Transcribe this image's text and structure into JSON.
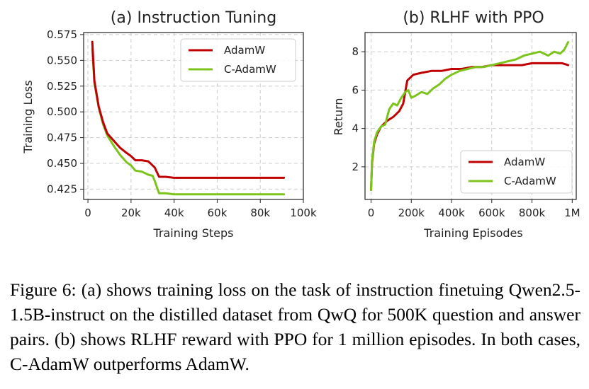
{
  "charts": [
    {
      "title": "(a) Instruction Tuning",
      "xlabel": "Training Steps",
      "ylabel": "Training Loss",
      "xticks": [
        "0",
        "20k",
        "40k",
        "60k",
        "80k",
        "100k"
      ],
      "yticks": [
        "0.425",
        "0.450",
        "0.475",
        "0.500",
        "0.525",
        "0.550",
        "0.575"
      ]
    },
    {
      "title": "(b) RLHF with PPO",
      "xlabel": "Training Episodes",
      "ylabel": "Return",
      "xticks": [
        "0",
        "200k",
        "400k",
        "600k",
        "800k",
        "1M"
      ],
      "yticks": [
        "2",
        "4",
        "6",
        "8"
      ]
    }
  ],
  "legend": {
    "adamw": "AdamW",
    "cadamw": "C-AdamW"
  },
  "colors": {
    "adamw": "#c00000",
    "cadamw": "#7cc41c",
    "grid": "#cccccc"
  },
  "chart_data": [
    {
      "type": "line",
      "title": "(a) Instruction Tuning",
      "xlabel": "Training Steps",
      "ylabel": "Training Loss",
      "xlim": [
        -2000,
        100000
      ],
      "ylim": [
        0.415,
        0.577
      ],
      "grid": true,
      "legend": "top-right",
      "series": [
        {
          "name": "AdamW",
          "x": [
            2000,
            3000,
            5000,
            7000,
            9000,
            12000,
            15000,
            18000,
            20000,
            22000,
            25000,
            28000,
            30000,
            31000,
            33000,
            36000,
            40000,
            45000,
            50000,
            55000,
            60000,
            65000,
            70000,
            75000,
            80000,
            85000,
            88000,
            91000
          ],
          "y": [
            0.568,
            0.53,
            0.505,
            0.49,
            0.479,
            0.472,
            0.465,
            0.46,
            0.457,
            0.453,
            0.453,
            0.452,
            0.448,
            0.446,
            0.437,
            0.437,
            0.436,
            0.436,
            0.436,
            0.436,
            0.436,
            0.436,
            0.436,
            0.436,
            0.436,
            0.436,
            0.436,
            0.436
          ]
        },
        {
          "name": "C-AdamW",
          "x": [
            2000,
            3000,
            5000,
            7000,
            9000,
            12000,
            15000,
            18000,
            20000,
            22000,
            25000,
            28000,
            30000,
            31000,
            33000,
            36000,
            40000,
            45000,
            50000,
            55000,
            60000,
            65000,
            70000,
            75000,
            80000,
            85000,
            88000,
            91000
          ],
          "y": [
            0.561,
            0.528,
            0.504,
            0.488,
            0.477,
            0.467,
            0.458,
            0.451,
            0.448,
            0.443,
            0.442,
            0.439,
            0.438,
            0.433,
            0.421,
            0.421,
            0.42,
            0.42,
            0.42,
            0.42,
            0.42,
            0.42,
            0.42,
            0.42,
            0.42,
            0.42,
            0.42,
            0.42
          ]
        }
      ]
    },
    {
      "type": "line",
      "title": "(b) RLHF with PPO",
      "xlabel": "Training Episodes",
      "ylabel": "Return",
      "xlim": [
        -30000,
        1020000
      ],
      "ylim": [
        0.3,
        9.0
      ],
      "grid": true,
      "legend": "bottom-right",
      "series": [
        {
          "name": "AdamW",
          "x": [
            0,
            5000,
            15000,
            30000,
            50000,
            80000,
            110000,
            140000,
            160000,
            180000,
            210000,
            250000,
            300000,
            350000,
            400000,
            450000,
            500000,
            550000,
            600000,
            650000,
            700000,
            750000,
            800000,
            850000,
            900000,
            950000,
            980000
          ],
          "y": [
            0.8,
            2.2,
            3.2,
            3.7,
            4.1,
            4.4,
            4.6,
            4.9,
            5.3,
            6.5,
            6.8,
            6.9,
            7.0,
            7.0,
            7.1,
            7.1,
            7.2,
            7.2,
            7.3,
            7.3,
            7.3,
            7.3,
            7.4,
            7.4,
            7.4,
            7.4,
            7.3
          ]
        },
        {
          "name": "C-AdamW",
          "x": [
            0,
            5000,
            15000,
            30000,
            50000,
            70000,
            90000,
            110000,
            130000,
            150000,
            170000,
            185000,
            200000,
            220000,
            250000,
            280000,
            310000,
            340000,
            370000,
            400000,
            440000,
            480000,
            520000,
            560000,
            600000,
            640000,
            680000,
            720000,
            760000,
            800000,
            840000,
            880000,
            910000,
            940000,
            960000,
            980000
          ],
          "y": [
            0.8,
            2.3,
            3.3,
            3.8,
            4.1,
            4.2,
            5.0,
            5.3,
            5.2,
            5.6,
            5.9,
            6.0,
            5.6,
            5.7,
            5.9,
            5.8,
            6.1,
            6.3,
            6.6,
            6.8,
            7.0,
            7.1,
            7.2,
            7.2,
            7.3,
            7.4,
            7.5,
            7.6,
            7.8,
            7.9,
            8.0,
            7.8,
            8.0,
            7.9,
            8.1,
            8.5
          ]
        }
      ]
    }
  ],
  "caption": "Figure 6: (a) shows training loss on the task of instruction finetuing Qwen2.5-1.5B-instruct on the distilled dataset from QwQ for 500K question and answer pairs. (b) shows RLHF reward with PPO for 1 million episodes. In both cases, C-AdamW outperforms AdamW."
}
